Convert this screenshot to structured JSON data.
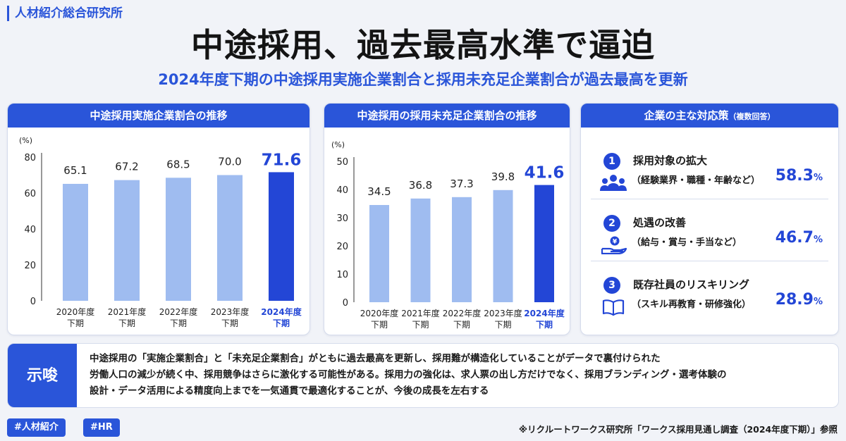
{
  "brand": "人材紹介総合研究所",
  "title": "中途採用、過去最高水準で逼迫",
  "subtitle": "2024年度下期の中途採用実施企業割合と採用未充足企業割合が過去最高を更新",
  "colors": {
    "accent": "#2a55d9",
    "highlight_bar": "#2346d6",
    "bar": "#9fbcf0"
  },
  "chart_data": [
    {
      "type": "bar",
      "title": "中途採用実施企業割合の推移",
      "ylabel": "(%)",
      "ylim": [
        0,
        80
      ],
      "yticks": [
        0,
        20,
        40,
        60,
        80
      ],
      "categories": [
        [
          "2020年度",
          "下期"
        ],
        [
          "2021年度",
          "下期"
        ],
        [
          "2022年度",
          "下期"
        ],
        [
          "2023年度",
          "下期"
        ],
        [
          "2024年度",
          "下期"
        ]
      ],
      "values": [
        65.1,
        67.2,
        68.5,
        70.0,
        71.6
      ],
      "labels": [
        "65.1",
        "67.2",
        "68.5",
        "70.0",
        "71.6"
      ],
      "highlight_index": 4,
      "grid": false
    },
    {
      "type": "bar",
      "title": "中途採用の採用未充足企業割合の推移",
      "ylabel": "(%)",
      "ylim": [
        0,
        50
      ],
      "yticks": [
        0,
        10,
        20,
        30,
        40,
        50
      ],
      "categories": [
        [
          "2020年度",
          "下期"
        ],
        [
          "2021年度",
          "下期"
        ],
        [
          "2022年度",
          "下期"
        ],
        [
          "2023年度",
          "下期"
        ],
        [
          "2024年度",
          "下期"
        ]
      ],
      "values": [
        34.5,
        36.8,
        37.3,
        39.8,
        41.6
      ],
      "labels": [
        "34.5",
        "36.8",
        "37.3",
        "39.8",
        "41.6"
      ],
      "highlight_index": 4,
      "grid": false
    }
  ],
  "responses": {
    "title": "企業の主な対応策",
    "note": "（複数回答）",
    "items": [
      {
        "num": "1",
        "title": "採用対象の拡大",
        "detail": "（経験業界・職種・年齢など）",
        "value": "58.3",
        "unit": "%",
        "icon": "people-icon"
      },
      {
        "num": "2",
        "title": "処遇の改善",
        "detail": "（給与・賞与・手当など）",
        "value": "46.7",
        "unit": "%",
        "icon": "yen-hand-icon"
      },
      {
        "num": "3",
        "title": "既存社員のリスキリング",
        "detail": "（スキル再教育・研修強化）",
        "value": "28.9",
        "unit": "%",
        "icon": "book-icon"
      }
    ]
  },
  "insight": {
    "label": "示唆",
    "lines": [
      "中途採用の「実施企業割合」と「未充足企業割合」がともに過去最高を更新し、採用難が構造化していることがデータで裏付けられた",
      "労働人口の減少が続く中、採用競争はさらに激化する可能性がある。採用力の強化は、求人票の出し方だけでなく、採用ブランディング・選考体験の",
      "設計・データ活用による精度向上までを一気通貫で最適化することが、今後の成長を左右する"
    ]
  },
  "tags": [
    "#人材紹介",
    "#HR"
  ],
  "source": "※リクルートワークス研究所「ワークス採用見通し調査（2024年度下期）」参照"
}
